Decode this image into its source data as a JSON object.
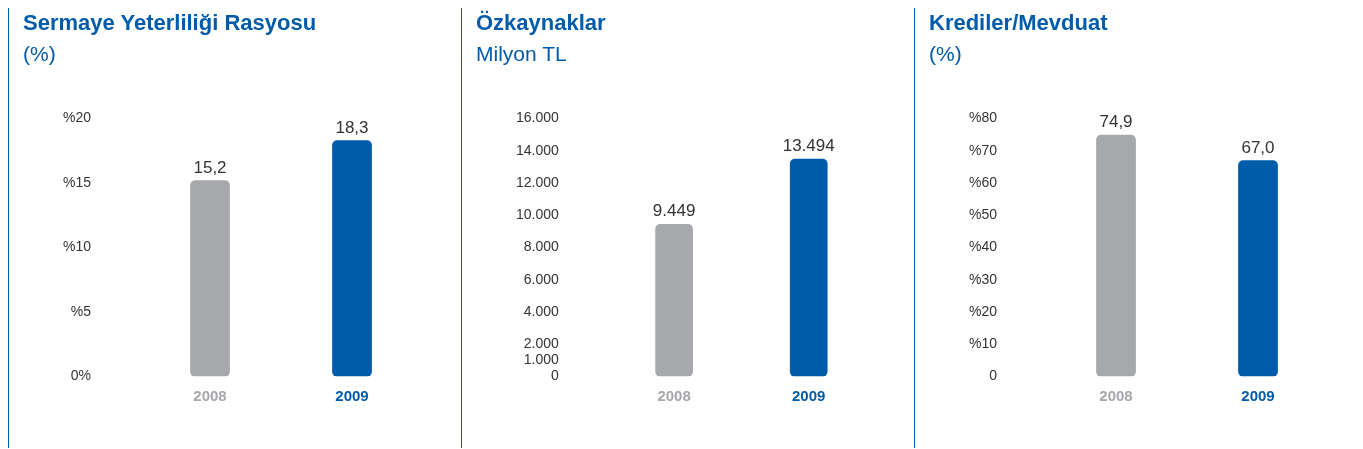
{
  "chart_data": [
    {
      "type": "bar",
      "title": "Sermaye Yeterliliği Rasyosu",
      "subtitle": "(%)",
      "categories": [
        "2008",
        "2009"
      ],
      "values": [
        15.2,
        18.3
      ],
      "colors": [
        "#a7a8ab",
        "#005baa"
      ],
      "value_labels": [
        "15,2",
        "18,3"
      ],
      "ylim": [
        0,
        20
      ],
      "yticks": [
        {
          "value": 0,
          "label": "0%"
        },
        {
          "value": 5,
          "label": "%5"
        },
        {
          "value": 10,
          "label": "%10"
        },
        {
          "value": 15,
          "label": "%15"
        },
        {
          "value": 20,
          "label": "%20"
        }
      ]
    },
    {
      "type": "bar",
      "title": "Özkaynaklar",
      "subtitle": "Milyon TL",
      "categories": [
        "2008",
        "2009"
      ],
      "values": [
        9449,
        13494
      ],
      "colors": [
        "#a7a8ab",
        "#005baa"
      ],
      "value_labels": [
        "9.449",
        "13.494"
      ],
      "ylim": [
        0,
        16000
      ],
      "yticks": [
        0,
        {
          "value": 1000,
          "label": "1.000"
        },
        {
          "value": 2000,
          "label": "2.000"
        },
        {
          "value": 4000,
          "label": "4.000"
        },
        {
          "value": 6000,
          "label": "6.000"
        },
        {
          "value": 8000,
          "label": "8.000"
        },
        {
          "value": 10000,
          "label": "10.000"
        },
        {
          "value": 12000,
          "label": "12.000"
        },
        {
          "value": 14000,
          "label": "14.000"
        },
        {
          "value": 16000,
          "label": "16.000"
        }
      ]
    },
    {
      "type": "bar",
      "title": "Krediler/Mevduat",
      "subtitle": "(%)",
      "categories": [
        "2008",
        "2009"
      ],
      "values": [
        74.9,
        67.0
      ],
      "colors": [
        "#a7a8ab",
        "#005baa"
      ],
      "value_labels": [
        "74,9",
        "67,0"
      ],
      "ylim": [
        0,
        80
      ],
      "yticks": [
        0,
        {
          "value": 10,
          "label": "%10"
        },
        {
          "value": 20,
          "label": "%20"
        },
        {
          "value": 30,
          "label": "%30"
        },
        {
          "value": 40,
          "label": "%40"
        },
        {
          "value": 50,
          "label": "%50"
        },
        {
          "value": 60,
          "label": "%60"
        },
        {
          "value": 70,
          "label": "%70"
        },
        {
          "value": 80,
          "label": "%80"
        }
      ]
    }
  ]
}
